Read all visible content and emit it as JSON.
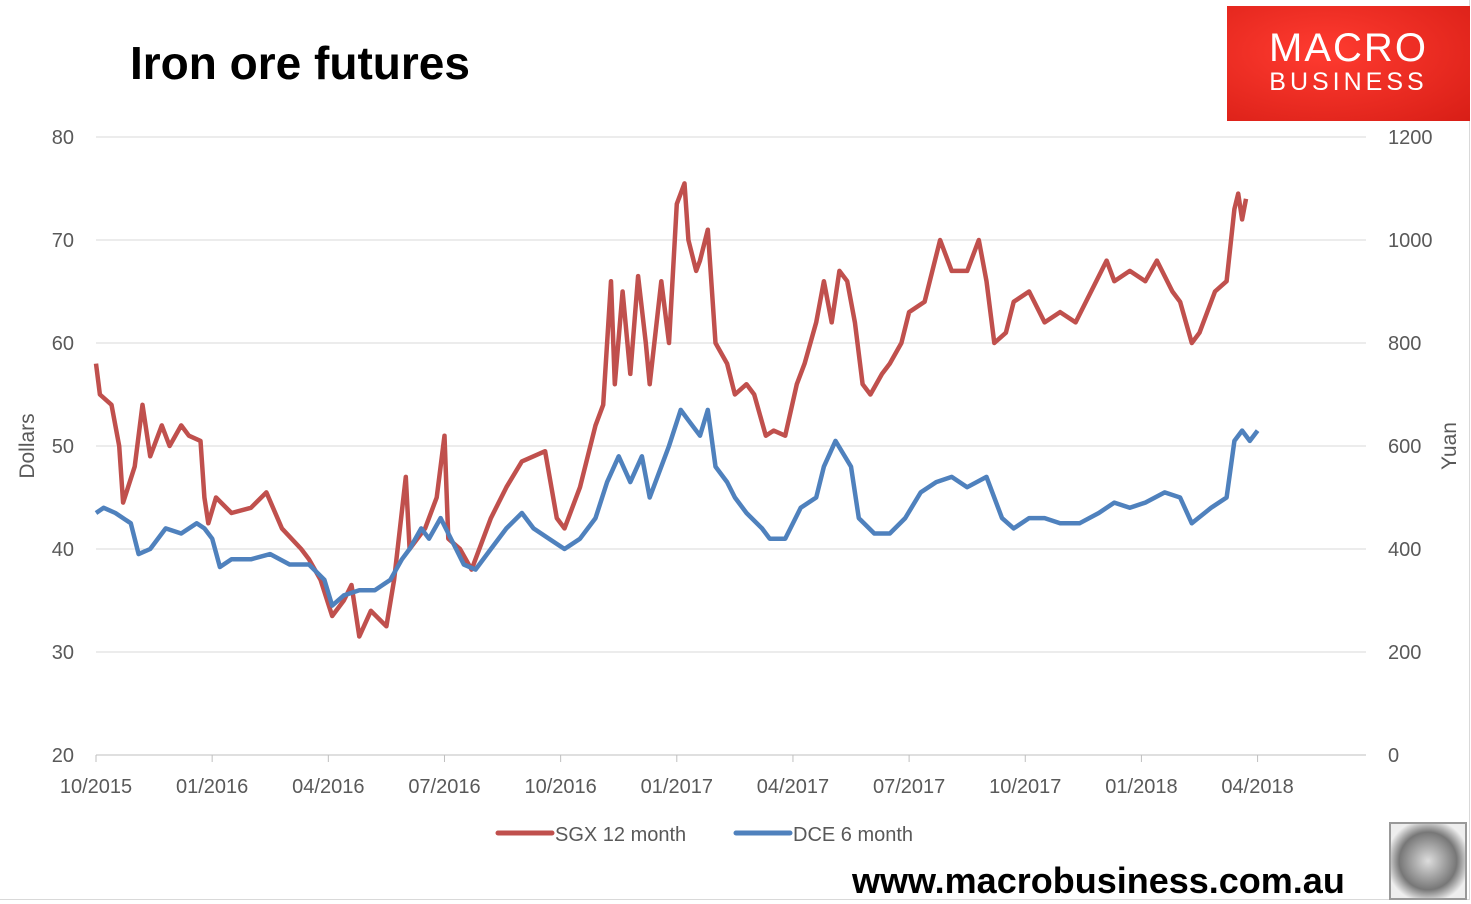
{
  "logo": {
    "line1": "MACRO",
    "line2": "BUSINESS"
  },
  "footer": {
    "url": "www.macrobusiness.com.au"
  },
  "chart_data": {
    "type": "line",
    "title": "Iron ore futures",
    "ylabel": "Dollars",
    "y2label": "Yuan",
    "ylim": [
      20,
      80
    ],
    "y2lim": [
      0,
      1200
    ],
    "yticks": [
      "20",
      "30",
      "40",
      "50",
      "60",
      "70",
      "80"
    ],
    "y2ticks": [
      "0",
      "200",
      "400",
      "600",
      "800",
      "1000",
      "1200"
    ],
    "x_unit": "months since 10/2015",
    "xlim": [
      0,
      32.8
    ],
    "xticks": [
      {
        "x": 0,
        "label": "10/2015"
      },
      {
        "x": 3,
        "label": "01/2016"
      },
      {
        "x": 6,
        "label": "04/2016"
      },
      {
        "x": 9,
        "label": "07/2016"
      },
      {
        "x": 12,
        "label": "10/2016"
      },
      {
        "x": 15,
        "label": "01/2017"
      },
      {
        "x": 18,
        "label": "04/2017"
      },
      {
        "x": 21,
        "label": "07/2017"
      },
      {
        "x": 24,
        "label": "10/2017"
      },
      {
        "x": 27,
        "label": "01/2018"
      },
      {
        "x": 30,
        "label": "04/2018"
      }
    ],
    "grid": true,
    "legend_position": "bottom",
    "series": [
      {
        "name": "SGX 12 month",
        "axis": "left",
        "color": "#c0504d",
        "points": [
          [
            0,
            58
          ],
          [
            0.1,
            55
          ],
          [
            0.4,
            54
          ],
          [
            0.6,
            50
          ],
          [
            0.7,
            44.5
          ],
          [
            1.0,
            48
          ],
          [
            1.2,
            54
          ],
          [
            1.4,
            49
          ],
          [
            1.7,
            52
          ],
          [
            1.9,
            50
          ],
          [
            2.2,
            52
          ],
          [
            2.4,
            51
          ],
          [
            2.7,
            50.5
          ],
          [
            2.8,
            45
          ],
          [
            2.9,
            42.5
          ],
          [
            3.1,
            45
          ],
          [
            3.5,
            43.5
          ],
          [
            4.0,
            44
          ],
          [
            4.4,
            45.5
          ],
          [
            4.8,
            42
          ],
          [
            5.3,
            40
          ],
          [
            5.5,
            39
          ],
          [
            5.8,
            37
          ],
          [
            6.1,
            33.5
          ],
          [
            6.4,
            35
          ],
          [
            6.6,
            36.5
          ],
          [
            6.8,
            31.5
          ],
          [
            7.1,
            34
          ],
          [
            7.5,
            32.5
          ],
          [
            7.7,
            37
          ],
          [
            8.0,
            47
          ],
          [
            8.1,
            40
          ],
          [
            8.5,
            42
          ],
          [
            8.8,
            45
          ],
          [
            9.0,
            51
          ],
          [
            9.1,
            41
          ],
          [
            9.4,
            40
          ],
          [
            9.7,
            38
          ],
          [
            10.2,
            43
          ],
          [
            10.6,
            46
          ],
          [
            11.0,
            48.5
          ],
          [
            11.3,
            49
          ],
          [
            11.6,
            49.5
          ],
          [
            11.9,
            43
          ],
          [
            12.1,
            42
          ],
          [
            12.5,
            46
          ],
          [
            12.9,
            52
          ],
          [
            13.1,
            54
          ],
          [
            13.3,
            66
          ],
          [
            13.4,
            56
          ],
          [
            13.6,
            65
          ],
          [
            13.8,
            57
          ],
          [
            14.0,
            66.5
          ],
          [
            14.2,
            60
          ],
          [
            14.3,
            56
          ],
          [
            14.6,
            66
          ],
          [
            14.8,
            60
          ],
          [
            15.0,
            73.5
          ],
          [
            15.2,
            75.5
          ],
          [
            15.3,
            70
          ],
          [
            15.5,
            67
          ],
          [
            15.6,
            68
          ],
          [
            15.8,
            71
          ],
          [
            16.0,
            60
          ],
          [
            16.3,
            58
          ],
          [
            16.5,
            55
          ],
          [
            16.8,
            56
          ],
          [
            17.0,
            55
          ],
          [
            17.3,
            51
          ],
          [
            17.5,
            51.5
          ],
          [
            17.8,
            51
          ],
          [
            18.1,
            56
          ],
          [
            18.3,
            58
          ],
          [
            18.6,
            62
          ],
          [
            18.8,
            66
          ],
          [
            19.0,
            62
          ],
          [
            19.2,
            67
          ],
          [
            19.4,
            66
          ],
          [
            19.6,
            62
          ],
          [
            19.8,
            56
          ],
          [
            20.0,
            55
          ],
          [
            20.3,
            57
          ],
          [
            20.5,
            58
          ],
          [
            20.8,
            60
          ],
          [
            21.0,
            63
          ],
          [
            21.4,
            64
          ],
          [
            21.8,
            70
          ],
          [
            22.1,
            67
          ],
          [
            22.5,
            67
          ],
          [
            22.8,
            70
          ],
          [
            23.0,
            66
          ],
          [
            23.2,
            60
          ],
          [
            23.5,
            61
          ],
          [
            23.7,
            64
          ],
          [
            24.1,
            65
          ],
          [
            24.5,
            62
          ],
          [
            24.9,
            63
          ],
          [
            25.3,
            62
          ],
          [
            25.7,
            65
          ],
          [
            26.1,
            68
          ],
          [
            26.3,
            66
          ],
          [
            26.7,
            67
          ],
          [
            27.1,
            66
          ],
          [
            27.4,
            68
          ],
          [
            27.8,
            65
          ],
          [
            28.0,
            64
          ],
          [
            28.3,
            60
          ],
          [
            28.5,
            61
          ],
          [
            28.9,
            65
          ],
          [
            29.2,
            66
          ],
          [
            29.4,
            73
          ],
          [
            29.5,
            74.5
          ],
          [
            29.6,
            72
          ],
          [
            29.7,
            74
          ]
        ]
      },
      {
        "name": "DCE 6 month",
        "axis": "right",
        "color": "#4f81bd",
        "points": [
          [
            0,
            470
          ],
          [
            0.2,
            480
          ],
          [
            0.5,
            470
          ],
          [
            0.9,
            450
          ],
          [
            1.1,
            390
          ],
          [
            1.4,
            400
          ],
          [
            1.8,
            440
          ],
          [
            2.2,
            430
          ],
          [
            2.6,
            450
          ],
          [
            2.8,
            440
          ],
          [
            3.0,
            420
          ],
          [
            3.2,
            365
          ],
          [
            3.5,
            380
          ],
          [
            4.0,
            380
          ],
          [
            4.5,
            390
          ],
          [
            5.0,
            370
          ],
          [
            5.5,
            370
          ],
          [
            5.9,
            340
          ],
          [
            6.1,
            290
          ],
          [
            6.4,
            310
          ],
          [
            6.8,
            320
          ],
          [
            7.2,
            320
          ],
          [
            7.6,
            340
          ],
          [
            7.9,
            380
          ],
          [
            8.1,
            400
          ],
          [
            8.4,
            440
          ],
          [
            8.6,
            420
          ],
          [
            8.9,
            460
          ],
          [
            9.3,
            400
          ],
          [
            9.5,
            370
          ],
          [
            9.8,
            360
          ],
          [
            10.2,
            400
          ],
          [
            10.6,
            440
          ],
          [
            11.0,
            470
          ],
          [
            11.3,
            440
          ],
          [
            11.7,
            420
          ],
          [
            12.1,
            400
          ],
          [
            12.5,
            420
          ],
          [
            12.9,
            460
          ],
          [
            13.2,
            530
          ],
          [
            13.5,
            580
          ],
          [
            13.8,
            530
          ],
          [
            14.1,
            580
          ],
          [
            14.3,
            500
          ],
          [
            14.6,
            560
          ],
          [
            14.8,
            600
          ],
          [
            15.1,
            670
          ],
          [
            15.3,
            650
          ],
          [
            15.6,
            620
          ],
          [
            15.8,
            670
          ],
          [
            16.0,
            560
          ],
          [
            16.3,
            530
          ],
          [
            16.5,
            500
          ],
          [
            16.8,
            470
          ],
          [
            17.2,
            440
          ],
          [
            17.4,
            420
          ],
          [
            17.8,
            420
          ],
          [
            18.2,
            480
          ],
          [
            18.6,
            500
          ],
          [
            18.8,
            560
          ],
          [
            19.1,
            610
          ],
          [
            19.5,
            560
          ],
          [
            19.7,
            460
          ],
          [
            20.1,
            430
          ],
          [
            20.5,
            430
          ],
          [
            20.9,
            460
          ],
          [
            21.3,
            510
          ],
          [
            21.7,
            530
          ],
          [
            22.1,
            540
          ],
          [
            22.5,
            520
          ],
          [
            23.0,
            540
          ],
          [
            23.4,
            460
          ],
          [
            23.7,
            440
          ],
          [
            24.1,
            460
          ],
          [
            24.5,
            460
          ],
          [
            24.9,
            450
          ],
          [
            25.4,
            450
          ],
          [
            25.9,
            470
          ],
          [
            26.3,
            490
          ],
          [
            26.7,
            480
          ],
          [
            27.1,
            490
          ],
          [
            27.6,
            510
          ],
          [
            28.0,
            500
          ],
          [
            28.3,
            450
          ],
          [
            28.8,
            480
          ],
          [
            29.2,
            500
          ],
          [
            29.4,
            610
          ],
          [
            29.6,
            630
          ],
          [
            29.8,
            610
          ],
          [
            30.0,
            630
          ]
        ]
      }
    ]
  }
}
